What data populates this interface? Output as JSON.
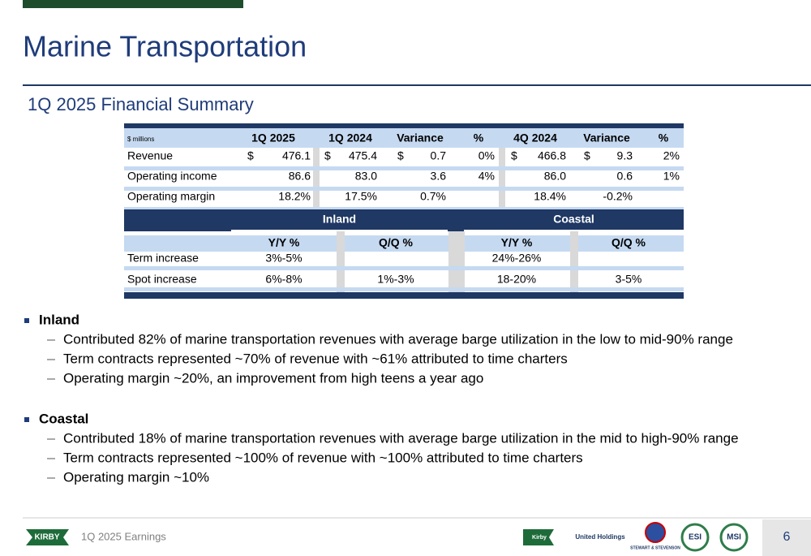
{
  "header": {
    "title": "Marine Transportation",
    "subtitle": "1Q 2025 Financial Summary"
  },
  "financial_table": {
    "units": "$ millions",
    "columns": [
      "1Q 2025",
      "1Q 2024",
      "Variance",
      "%",
      "4Q 2024",
      "Variance",
      "%"
    ],
    "rows": [
      {
        "label": "Revenue",
        "currency": "$",
        "values": [
          "476.1",
          "475.4",
          "0.7",
          "0%",
          "466.8",
          "9.3",
          "2%"
        ]
      },
      {
        "label": "Operating income",
        "values": [
          "86.6",
          "83.0",
          "3.6",
          "4%",
          "86.0",
          "0.6",
          "1%"
        ]
      },
      {
        "label": "Operating margin",
        "values": [
          "18.2%",
          "17.5%",
          "0.7%",
          null,
          "18.4%",
          "-0.2%",
          null
        ]
      }
    ]
  },
  "rate_table": {
    "groups": [
      "Inland",
      "Coastal"
    ],
    "subcolumns": [
      "Y/Y  %",
      "Q/Q  %"
    ],
    "rows": [
      {
        "label": "Term increase",
        "values": [
          "3%-5%",
          null,
          "24%-26%",
          null
        ]
      },
      {
        "label": "Spot increase",
        "values": [
          "6%-8%",
          "1%-3%",
          "18-20%",
          "3-5%"
        ]
      }
    ]
  },
  "sections": [
    {
      "heading": "Inland",
      "items": [
        "Contributed 82% of marine transportation revenues with average barge utilization in the low to mid-90% range",
        "Term contracts represented ~70% of revenue with ~61% attributed to time charters",
        "Operating margin ~20%, an improvement from high teens a year ago"
      ]
    },
    {
      "heading": "Coastal",
      "items": [
        "Contributed 18% of marine transportation revenues with average barge utilization in the mid to high-90% range",
        "Term contracts represented ~100% of revenue with ~100% attributed to time charters",
        "Operating margin ~10%"
      ]
    }
  ],
  "footer": {
    "brand": "KIRBY",
    "label": "1Q 2025 Earnings",
    "page": "6",
    "logos": [
      "Kirby",
      "United Holdings",
      "STEWART & STEVENSON",
      "ESI",
      "MSI"
    ]
  }
}
